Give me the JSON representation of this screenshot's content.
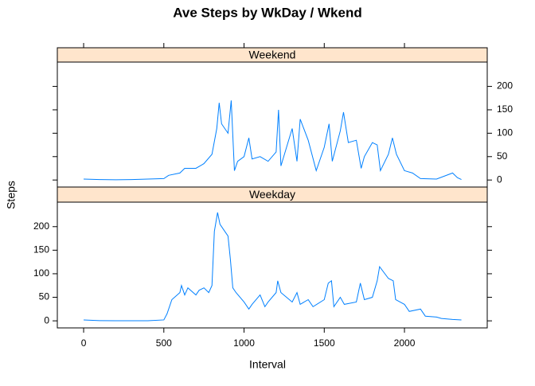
{
  "chart_data": {
    "type": "line",
    "title": "Ave Steps by WkDay / Wkend",
    "x_label": "Interval",
    "y_label": "Steps",
    "xlim": [
      -164,
      2516
    ],
    "xticks": [
      0,
      500,
      1000,
      1500,
      2000
    ],
    "ylim": [
      -15,
      252
    ],
    "yticks": [
      0,
      50,
      100,
      150,
      200
    ],
    "grid": false,
    "series": [
      {
        "name": "Weekend",
        "color": "#0080ff",
        "x": [
          0,
          100,
          200,
          300,
          400,
          500,
          530,
          600,
          630,
          700,
          750,
          800,
          830,
          845,
          860,
          900,
          920,
          940,
          960,
          1000,
          1030,
          1050,
          1100,
          1150,
          1200,
          1215,
          1230,
          1300,
          1330,
          1350,
          1400,
          1450,
          1500,
          1530,
          1550,
          1600,
          1620,
          1650,
          1700,
          1730,
          1750,
          1800,
          1830,
          1850,
          1900,
          1925,
          1950,
          2000,
          2050,
          2100,
          2200,
          2300,
          2330,
          2355
        ],
        "values": [
          2,
          1,
          0.5,
          1,
          2,
          3,
          10,
          15,
          25,
          25,
          35,
          55,
          110,
          165,
          120,
          100,
          170,
          20,
          40,
          50,
          90,
          45,
          50,
          40,
          60,
          150,
          30,
          110,
          40,
          130,
          85,
          20,
          70,
          120,
          40,
          105,
          145,
          80,
          85,
          25,
          50,
          80,
          75,
          20,
          55,
          90,
          55,
          20,
          15,
          3,
          2,
          15,
          5,
          1
        ]
      },
      {
        "name": "Weekday",
        "color": "#0080ff",
        "x": [
          0,
          100,
          200,
          300,
          400,
          500,
          520,
          550,
          600,
          610,
          630,
          650,
          700,
          720,
          750,
          780,
          800,
          815,
          835,
          850,
          880,
          900,
          915,
          930,
          950,
          1000,
          1030,
          1050,
          1100,
          1130,
          1150,
          1200,
          1210,
          1230,
          1300,
          1330,
          1350,
          1400,
          1430,
          1500,
          1525,
          1545,
          1560,
          1600,
          1625,
          1700,
          1725,
          1750,
          1800,
          1830,
          1845,
          1900,
          1930,
          1945,
          2000,
          2030,
          2100,
          2130,
          2200,
          2230,
          2300,
          2355
        ],
        "values": [
          2,
          0.5,
          0.3,
          0.2,
          0.3,
          2,
          15,
          45,
          60,
          75,
          55,
          70,
          55,
          65,
          70,
          60,
          75,
          190,
          230,
          205,
          190,
          180,
          130,
          70,
          60,
          40,
          25,
          35,
          55,
          30,
          40,
          60,
          85,
          60,
          40,
          60,
          35,
          45,
          30,
          45,
          80,
          85,
          30,
          50,
          35,
          40,
          80,
          45,
          50,
          85,
          115,
          90,
          85,
          45,
          35,
          20,
          25,
          10,
          8,
          5,
          3,
          2
        ]
      }
    ]
  }
}
